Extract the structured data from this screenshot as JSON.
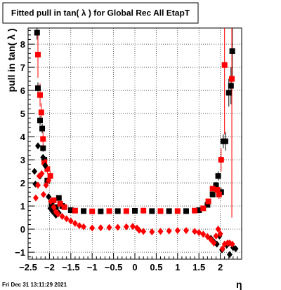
{
  "chart_data": {
    "type": "scatter",
    "title": "Fitted pull in tan( λ ) for Global Rec All EtapT",
    "xlabel": "η",
    "ylabel": "pull in tan( λ )",
    "xlim": [
      -2.5,
      2.5
    ],
    "ylim": [
      -1.3,
      8.7
    ],
    "xticks": [
      -2.5,
      -2,
      -1.5,
      -1,
      -0.5,
      0,
      0.5,
      1,
      1.5,
      2
    ],
    "xtick_labels": [
      "−2.5",
      "−2",
      "−1.5",
      "−1",
      "−0.5",
      "0",
      "0.5",
      "1",
      "1.5",
      "2"
    ],
    "yticks": [
      -1,
      0,
      1,
      2,
      3,
      4,
      5,
      6,
      7,
      8
    ],
    "ytick_labels": [
      "−1",
      "0",
      "1",
      "2",
      "3",
      "4",
      "5",
      "6",
      "7",
      "8"
    ],
    "grid": true,
    "timestamp": "Fri Dec 31 13:11:29 2021",
    "colors": {
      "black_series": "#000000",
      "red_series": "#ff0000"
    },
    "series": [
      {
        "marker": "square",
        "color": "#000000",
        "points": [
          [
            -2.29,
            8.5
          ],
          [
            -2.27,
            6.1
          ],
          [
            -2.22,
            4.7
          ],
          [
            -2.17,
            4.35
          ],
          [
            -2.15,
            3.5
          ],
          [
            -2.12,
            3.0
          ],
          [
            -2.05,
            2.1
          ],
          [
            -1.95,
            1.1
          ],
          [
            -1.85,
            0.95
          ],
          [
            -1.78,
            1.35
          ],
          [
            -1.7,
            1.0
          ],
          [
            -1.5,
            0.82
          ],
          [
            -1.2,
            0.78
          ],
          [
            -0.8,
            0.77
          ],
          [
            -0.4,
            0.78
          ],
          [
            0.0,
            0.79
          ],
          [
            0.4,
            0.78
          ],
          [
            0.8,
            0.78
          ],
          [
            1.2,
            0.78
          ],
          [
            1.5,
            0.82
          ],
          [
            1.7,
            1.05
          ],
          [
            1.82,
            1.5
          ],
          [
            1.9,
            1.9
          ],
          [
            1.95,
            2.3
          ],
          [
            2.02,
            1.6
          ],
          [
            2.07,
            3.8
          ],
          [
            2.12,
            3.8
          ],
          [
            2.2,
            5.9
          ],
          [
            2.25,
            6.2
          ],
          [
            2.28,
            7.7
          ]
        ],
        "error_y": [
          0.3,
          0.25,
          0.2,
          0.2,
          0.15,
          0.15,
          0.1,
          0.05,
          0.05,
          0.05,
          0.03,
          0.02,
          0.02,
          0.02,
          0.02,
          0.02,
          0.02,
          0.02,
          0.02,
          0.02,
          0.05,
          0.1,
          0.15,
          0.2,
          0.2,
          0.3,
          0.4,
          0.6,
          0.8,
          1.2
        ]
      },
      {
        "marker": "square",
        "color": "#ff0000",
        "points": [
          [
            -2.27,
            7.55
          ],
          [
            -2.22,
            5.8
          ],
          [
            -2.19,
            5.05
          ],
          [
            -2.15,
            3.9
          ],
          [
            -2.12,
            2.9
          ],
          [
            -2.05,
            2.6
          ],
          [
            -1.98,
            2.3
          ],
          [
            -1.9,
            1.25
          ],
          [
            -1.75,
            1.1
          ],
          [
            -1.65,
            0.95
          ],
          [
            -1.4,
            0.8
          ],
          [
            -1.0,
            0.77
          ],
          [
            -0.6,
            0.78
          ],
          [
            -0.2,
            0.78
          ],
          [
            0.2,
            0.8
          ],
          [
            0.6,
            0.78
          ],
          [
            1.0,
            0.78
          ],
          [
            1.4,
            0.8
          ],
          [
            1.6,
            0.9
          ],
          [
            1.72,
            1.2
          ],
          [
            1.82,
            1.75
          ],
          [
            1.93,
            1.7
          ],
          [
            1.97,
            1.5
          ],
          [
            2.02,
            3.0
          ],
          [
            2.1,
            7.1
          ],
          [
            2.27,
            6.5
          ]
        ],
        "error_y": [
          1.0,
          0.5,
          0.4,
          0.3,
          0.2,
          0.2,
          0.2,
          0.08,
          0.05,
          0.04,
          0.02,
          0.02,
          0.02,
          0.02,
          0.02,
          0.02,
          0.02,
          0.02,
          0.03,
          0.05,
          0.1,
          0.15,
          0.2,
          0.5,
          3.0,
          6.0
        ]
      },
      {
        "marker": "diamond",
        "color": "#000000",
        "points": [
          [
            -2.35,
            2.5
          ],
          [
            -2.33,
            1.95
          ],
          [
            -2.27,
            3.6
          ],
          [
            -2.22,
            2.3
          ],
          [
            -2.15,
            3.1
          ],
          [
            -2.1,
            2.75
          ],
          [
            -2.02,
            1.4
          ],
          [
            -1.98,
            0.9
          ],
          [
            -1.92,
            0.75
          ],
          [
            -1.85,
            0.6
          ],
          [
            -1.78,
            0.7
          ],
          [
            1.78,
            -0.4
          ],
          [
            1.85,
            -0.55
          ],
          [
            1.92,
            -0.65
          ],
          [
            1.98,
            -0.3
          ],
          [
            2.04,
            -0.9
          ],
          [
            2.15,
            -0.7
          ],
          [
            2.22,
            -1.1
          ],
          [
            2.3,
            -0.8
          ],
          [
            2.36,
            -0.85
          ]
        ]
      },
      {
        "marker": "diamond",
        "color": "#ff0000",
        "points": [
          [
            -2.32,
            1.35
          ],
          [
            -2.27,
            1.9
          ],
          [
            -2.24,
            2.3
          ],
          [
            -2.18,
            2.4
          ],
          [
            -2.14,
            1.5
          ],
          [
            -2.08,
            1.9
          ],
          [
            -2.02,
            2.1
          ],
          [
            -1.97,
            1.2
          ],
          [
            -1.9,
            0.95
          ],
          [
            -1.85,
            0.75
          ],
          [
            -1.8,
            0.65
          ],
          [
            -1.7,
            0.55
          ],
          [
            -1.6,
            0.45
          ],
          [
            -1.5,
            0.35
          ],
          [
            -1.4,
            0.25
          ],
          [
            -1.3,
            0.15
          ],
          [
            -1.2,
            0.1
          ],
          [
            -1.0,
            0.05
          ],
          [
            -0.8,
            0.06
          ],
          [
            -0.6,
            0.07
          ],
          [
            -0.4,
            0.08
          ],
          [
            -0.2,
            0.1
          ],
          [
            -0.05,
            0.12
          ],
          [
            0.05,
            0.05
          ],
          [
            0.1,
            -0.05
          ],
          [
            0.2,
            -0.1
          ],
          [
            0.4,
            -0.12
          ],
          [
            0.6,
            -0.1
          ],
          [
            0.8,
            -0.08
          ],
          [
            1.0,
            -0.06
          ],
          [
            1.2,
            -0.06
          ],
          [
            1.4,
            -0.1
          ],
          [
            1.5,
            -0.15
          ],
          [
            1.6,
            -0.22
          ],
          [
            1.7,
            -0.32
          ],
          [
            1.78,
            -0.45
          ],
          [
            1.85,
            -0.6
          ],
          [
            1.9,
            -0.3
          ],
          [
            1.95,
            0.0
          ],
          [
            2.0,
            -0.2
          ],
          [
            2.05,
            -0.85
          ],
          [
            2.1,
            -0.65
          ],
          [
            2.17,
            -0.6
          ],
          [
            2.22,
            -0.6
          ],
          [
            2.28,
            -0.65
          ]
        ]
      }
    ]
  }
}
